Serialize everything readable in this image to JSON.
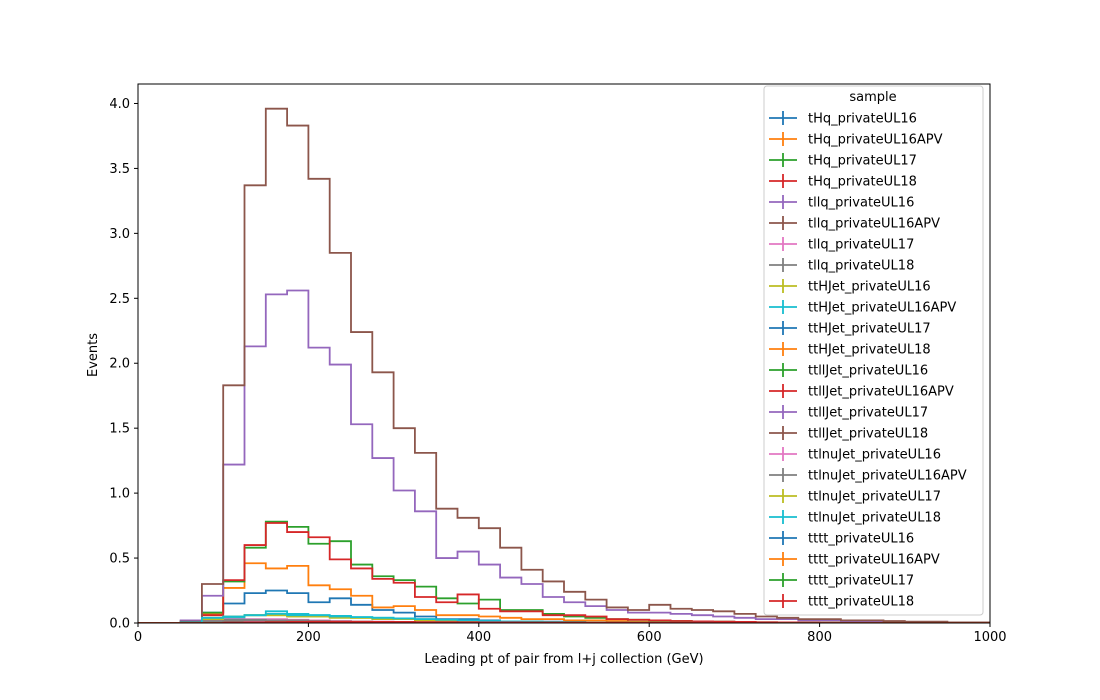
{
  "chart_data": {
    "type": "line",
    "style": "step-histogram",
    "xlabel": "Leading pt of pair from l+j collection (GeV)",
    "ylabel": "Events",
    "xlim": [
      0,
      1000
    ],
    "ylim": [
      0,
      4.15
    ],
    "x_ticks": [
      0,
      200,
      400,
      600,
      800,
      1000
    ],
    "y_ticks": [
      0.0,
      0.5,
      1.0,
      1.5,
      2.0,
      2.5,
      3.0,
      3.5,
      4.0
    ],
    "grid": false,
    "legend_title": "sample",
    "legend_position": "top-right",
    "bin_edges": [
      0,
      25,
      50,
      75,
      100,
      125,
      150,
      175,
      200,
      225,
      250,
      275,
      300,
      325,
      350,
      375,
      400,
      425,
      450,
      475,
      500,
      525,
      550,
      575,
      600,
      625,
      650,
      675,
      700,
      725,
      750,
      775,
      800,
      825,
      850,
      875,
      900,
      925,
      950,
      975,
      1000
    ],
    "series": [
      {
        "name": "tHq_privateUL16",
        "color": "#1f77b4",
        "values": [
          0,
          0,
          0.01,
          0.02,
          0.01,
          0.01,
          0.01,
          0.01,
          0.01,
          0.005,
          0.005,
          0.005,
          0,
          0,
          0,
          0,
          0,
          0,
          0,
          0,
          0,
          0,
          0,
          0,
          0,
          0,
          0,
          0,
          0,
          0,
          0,
          0,
          0,
          0,
          0,
          0,
          0,
          0,
          0,
          0
        ]
      },
      {
        "name": "tHq_privateUL16APV",
        "color": "#ff7f0e",
        "values": [
          0,
          0,
          0.005,
          0.01,
          0.01,
          0.01,
          0.005,
          0.005,
          0.005,
          0.005,
          0,
          0,
          0,
          0,
          0,
          0,
          0,
          0,
          0,
          0,
          0,
          0,
          0,
          0,
          0,
          0,
          0,
          0,
          0,
          0,
          0,
          0,
          0,
          0,
          0,
          0,
          0,
          0,
          0,
          0
        ]
      },
      {
        "name": "tHq_privateUL17",
        "color": "#2ca02c",
        "values": [
          0,
          0,
          0.01,
          0.02,
          0.02,
          0.015,
          0.01,
          0.01,
          0.01,
          0.005,
          0.005,
          0.005,
          0,
          0,
          0,
          0,
          0,
          0,
          0,
          0,
          0,
          0,
          0,
          0,
          0,
          0,
          0,
          0,
          0,
          0,
          0,
          0,
          0,
          0,
          0,
          0,
          0,
          0,
          0,
          0
        ]
      },
      {
        "name": "tHq_privateUL18",
        "color": "#d62728",
        "values": [
          0,
          0,
          0.01,
          0.02,
          0.02,
          0.02,
          0.015,
          0.01,
          0.01,
          0.005,
          0.005,
          0.005,
          0,
          0,
          0,
          0,
          0,
          0,
          0,
          0,
          0,
          0,
          0,
          0,
          0,
          0,
          0,
          0,
          0,
          0,
          0,
          0,
          0,
          0,
          0,
          0,
          0,
          0,
          0,
          0
        ]
      },
      {
        "name": "tllq_privateUL16",
        "color": "#9467bd",
        "values": [
          0,
          0,
          0.01,
          0.01,
          0.01,
          0.01,
          0.01,
          0.005,
          0.005,
          0.005,
          0,
          0,
          0,
          0,
          0,
          0,
          0,
          0,
          0,
          0,
          0,
          0,
          0,
          0,
          0,
          0,
          0,
          0,
          0,
          0,
          0,
          0,
          0,
          0,
          0,
          0,
          0,
          0,
          0,
          0
        ]
      },
      {
        "name": "tllq_privateUL16APV",
        "color": "#8c564b",
        "values": [
          0,
          0,
          0.005,
          0.01,
          0.01,
          0.01,
          0.005,
          0.005,
          0.005,
          0,
          0,
          0,
          0,
          0,
          0,
          0,
          0,
          0,
          0,
          0,
          0,
          0,
          0,
          0,
          0,
          0,
          0,
          0,
          0,
          0,
          0,
          0,
          0,
          0,
          0,
          0,
          0,
          0,
          0,
          0
        ]
      },
      {
        "name": "tllq_privateUL17",
        "color": "#e377c2",
        "values": [
          0,
          0,
          0.01,
          0.02,
          0.02,
          0.015,
          0.01,
          0.01,
          0.01,
          0.005,
          0.005,
          0,
          0,
          0,
          0,
          0,
          0,
          0,
          0,
          0,
          0,
          0,
          0,
          0,
          0,
          0,
          0,
          0,
          0,
          0,
          0,
          0,
          0,
          0,
          0,
          0,
          0,
          0,
          0,
          0
        ]
      },
      {
        "name": "tllq_privateUL18",
        "color": "#7f7f7f",
        "values": [
          0,
          0,
          0.01,
          0.02,
          0.02,
          0.02,
          0.015,
          0.01,
          0.01,
          0.005,
          0.005,
          0,
          0,
          0,
          0,
          0,
          0,
          0,
          0,
          0,
          0,
          0,
          0,
          0,
          0,
          0,
          0,
          0,
          0,
          0,
          0,
          0,
          0,
          0,
          0,
          0,
          0,
          0,
          0,
          0
        ]
      },
      {
        "name": "ttHJet_privateUL16",
        "color": "#bcbd22",
        "values": [
          0,
          0,
          0.005,
          0.04,
          0.05,
          0.06,
          0.06,
          0.05,
          0.05,
          0.045,
          0.04,
          0.035,
          0.03,
          0.025,
          0.02,
          0.02,
          0.015,
          0.01,
          0.01,
          0.008,
          0.006,
          0.005,
          0.004,
          0.003,
          0.003,
          0.002,
          0.002,
          0.002,
          0.001,
          0.001,
          0,
          0,
          0,
          0,
          0,
          0,
          0,
          0,
          0,
          0
        ]
      },
      {
        "name": "ttHJet_privateUL16APV",
        "color": "#17becf",
        "values": [
          0,
          0,
          0.005,
          0.03,
          0.04,
          0.06,
          0.09,
          0.07,
          0.06,
          0.055,
          0.045,
          0.04,
          0.035,
          0.03,
          0.025,
          0.02,
          0.015,
          0.012,
          0.01,
          0.008,
          0.006,
          0.005,
          0.004,
          0.003,
          0.003,
          0.002,
          0.002,
          0.001,
          0.001,
          0.001,
          0,
          0,
          0,
          0,
          0,
          0,
          0,
          0,
          0,
          0
        ]
      },
      {
        "name": "ttHJet_privateUL17",
        "color": "#1f77b4",
        "values": [
          0,
          0,
          0.01,
          0.08,
          0.15,
          0.23,
          0.25,
          0.23,
          0.16,
          0.19,
          0.14,
          0.1,
          0.08,
          0.05,
          0.03,
          0.03,
          0.02,
          0.01,
          0.01,
          0.01,
          0.01,
          0.005,
          0.005,
          0.004,
          0.003,
          0.003,
          0.002,
          0.002,
          0.001,
          0.001,
          0,
          0,
          0,
          0,
          0,
          0,
          0,
          0,
          0,
          0
        ]
      },
      {
        "name": "ttHJet_privateUL18",
        "color": "#ff7f0e",
        "values": [
          0,
          0,
          0.01,
          0.07,
          0.27,
          0.46,
          0.42,
          0.44,
          0.29,
          0.26,
          0.21,
          0.12,
          0.13,
          0.1,
          0.06,
          0.06,
          0.05,
          0.04,
          0.03,
          0.03,
          0.02,
          0.02,
          0.015,
          0.01,
          0.01,
          0.01,
          0.008,
          0.006,
          0.005,
          0.004,
          0.003,
          0.002,
          0.002,
          0.001,
          0.001,
          0,
          0,
          0,
          0,
          0
        ]
      },
      {
        "name": "ttllJet_privateUL16",
        "color": "#2ca02c",
        "values": [
          0,
          0,
          0.01,
          0.08,
          0.32,
          0.58,
          0.78,
          0.74,
          0.61,
          0.63,
          0.45,
          0.36,
          0.33,
          0.28,
          0.19,
          0.15,
          0.18,
          0.1,
          0.1,
          0.07,
          0.05,
          0.04,
          0.03,
          0.025,
          0.02,
          0.015,
          0.012,
          0.01,
          0.008,
          0.006,
          0.005,
          0.004,
          0.003,
          0.002,
          0.002,
          0.001,
          0.001,
          0,
          0,
          0
        ]
      },
      {
        "name": "ttllJet_privateUL16APV",
        "color": "#d62728",
        "values": [
          0,
          0,
          0.01,
          0.06,
          0.33,
          0.6,
          0.77,
          0.7,
          0.66,
          0.49,
          0.42,
          0.34,
          0.31,
          0.2,
          0.16,
          0.22,
          0.11,
          0.09,
          0.09,
          0.06,
          0.06,
          0.05,
          0.03,
          0.025,
          0.02,
          0.015,
          0.012,
          0.01,
          0.008,
          0.006,
          0.005,
          0.004,
          0.003,
          0.002,
          0.002,
          0.001,
          0.001,
          0,
          0,
          0
        ]
      },
      {
        "name": "ttllJet_privateUL17",
        "color": "#9467bd",
        "values": [
          0,
          0,
          0.02,
          0.21,
          1.22,
          2.13,
          2.53,
          2.56,
          2.12,
          1.99,
          1.53,
          1.27,
          1.02,
          0.86,
          0.5,
          0.55,
          0.45,
          0.35,
          0.3,
          0.2,
          0.16,
          0.13,
          0.1,
          0.08,
          0.08,
          0.07,
          0.06,
          0.05,
          0.04,
          0.03,
          0.03,
          0.02,
          0.02,
          0.015,
          0.01,
          0.01,
          0.008,
          0.006,
          0.004,
          0.003
        ]
      },
      {
        "name": "ttllJet_privateUL18",
        "color": "#8c564b",
        "values": [
          0,
          0,
          0.01,
          0.3,
          1.83,
          3.37,
          3.96,
          3.83,
          3.42,
          2.85,
          2.24,
          1.93,
          1.5,
          1.31,
          0.88,
          0.81,
          0.73,
          0.58,
          0.41,
          0.32,
          0.24,
          0.18,
          0.12,
          0.1,
          0.14,
          0.11,
          0.1,
          0.09,
          0.07,
          0.05,
          0.04,
          0.03,
          0.03,
          0.02,
          0.02,
          0.015,
          0.01,
          0.01,
          0.005,
          0.005
        ]
      },
      {
        "name": "ttlnuJet_privateUL16",
        "color": "#e377c2",
        "values": [
          0,
          0,
          0.005,
          0.02,
          0.03,
          0.03,
          0.03,
          0.025,
          0.02,
          0.015,
          0.01,
          0.01,
          0.008,
          0.006,
          0.005,
          0.004,
          0.003,
          0.002,
          0.002,
          0.001,
          0,
          0,
          0,
          0,
          0,
          0,
          0,
          0,
          0,
          0,
          0,
          0,
          0,
          0,
          0,
          0,
          0,
          0,
          0,
          0
        ]
      },
      {
        "name": "ttlnuJet_privateUL16APV",
        "color": "#7f7f7f",
        "values": [
          0,
          0,
          0.005,
          0.015,
          0.025,
          0.025,
          0.02,
          0.02,
          0.015,
          0.012,
          0.01,
          0.008,
          0.006,
          0.005,
          0.004,
          0.003,
          0.002,
          0.002,
          0.001,
          0.001,
          0,
          0,
          0,
          0,
          0,
          0,
          0,
          0,
          0,
          0,
          0,
          0,
          0,
          0,
          0,
          0,
          0,
          0,
          0,
          0
        ]
      },
      {
        "name": "ttlnuJet_privateUL17",
        "color": "#bcbd22",
        "values": [
          0,
          0,
          0.005,
          0.03,
          0.05,
          0.06,
          0.06,
          0.05,
          0.05,
          0.04,
          0.04,
          0.03,
          0.03,
          0.02,
          0.02,
          0.015,
          0.01,
          0.01,
          0.008,
          0.006,
          0.005,
          0.004,
          0.003,
          0.003,
          0.002,
          0.002,
          0.001,
          0.001,
          0,
          0,
          0,
          0,
          0,
          0,
          0,
          0,
          0,
          0,
          0,
          0
        ]
      },
      {
        "name": "ttlnuJet_privateUL18",
        "color": "#17becf",
        "values": [
          0,
          0,
          0.005,
          0.04,
          0.05,
          0.06,
          0.07,
          0.06,
          0.06,
          0.05,
          0.045,
          0.04,
          0.035,
          0.03,
          0.025,
          0.02,
          0.015,
          0.012,
          0.01,
          0.008,
          0.006,
          0.005,
          0.004,
          0.003,
          0.003,
          0.002,
          0.002,
          0.001,
          0.001,
          0,
          0,
          0,
          0,
          0,
          0,
          0,
          0,
          0,
          0,
          0
        ]
      },
      {
        "name": "tttt_privateUL16",
        "color": "#1f77b4",
        "values": [
          0,
          0,
          0,
          0,
          0.001,
          0.002,
          0.003,
          0.004,
          0.004,
          0.004,
          0.004,
          0.004,
          0.003,
          0.003,
          0.003,
          0.003,
          0.002,
          0.002,
          0.002,
          0.002,
          0.002,
          0.001,
          0.001,
          0.001,
          0.001,
          0.001,
          0.001,
          0.001,
          0.001,
          0,
          0,
          0,
          0,
          0,
          0,
          0,
          0,
          0,
          0,
          0
        ]
      },
      {
        "name": "tttt_privateUL16APV",
        "color": "#ff7f0e",
        "values": [
          0,
          0,
          0,
          0,
          0.001,
          0.002,
          0.003,
          0.003,
          0.004,
          0.004,
          0.004,
          0.003,
          0.003,
          0.003,
          0.003,
          0.002,
          0.002,
          0.002,
          0.002,
          0.002,
          0.001,
          0.001,
          0.001,
          0.001,
          0.001,
          0.001,
          0.001,
          0.001,
          0,
          0,
          0,
          0,
          0,
          0,
          0,
          0,
          0,
          0,
          0,
          0
        ]
      },
      {
        "name": "tttt_privateUL17",
        "color": "#2ca02c",
        "values": [
          0,
          0,
          0,
          0,
          0.002,
          0.004,
          0.006,
          0.007,
          0.008,
          0.008,
          0.008,
          0.007,
          0.007,
          0.006,
          0.006,
          0.005,
          0.005,
          0.004,
          0.004,
          0.003,
          0.003,
          0.003,
          0.002,
          0.002,
          0.002,
          0.002,
          0.001,
          0.001,
          0.001,
          0.001,
          0,
          0,
          0,
          0,
          0,
          0,
          0,
          0,
          0,
          0
        ]
      },
      {
        "name": "tttt_privateUL18",
        "color": "#d62728",
        "values": [
          0,
          0,
          0,
          0,
          0.002,
          0.005,
          0.007,
          0.008,
          0.009,
          0.009,
          0.009,
          0.008,
          0.008,
          0.007,
          0.007,
          0.006,
          0.005,
          0.005,
          0.004,
          0.004,
          0.003,
          0.003,
          0.003,
          0.002,
          0.002,
          0.002,
          0.002,
          0.001,
          0.001,
          0.001,
          0,
          0,
          0,
          0,
          0,
          0,
          0,
          0,
          0,
          0
        ]
      }
    ]
  }
}
